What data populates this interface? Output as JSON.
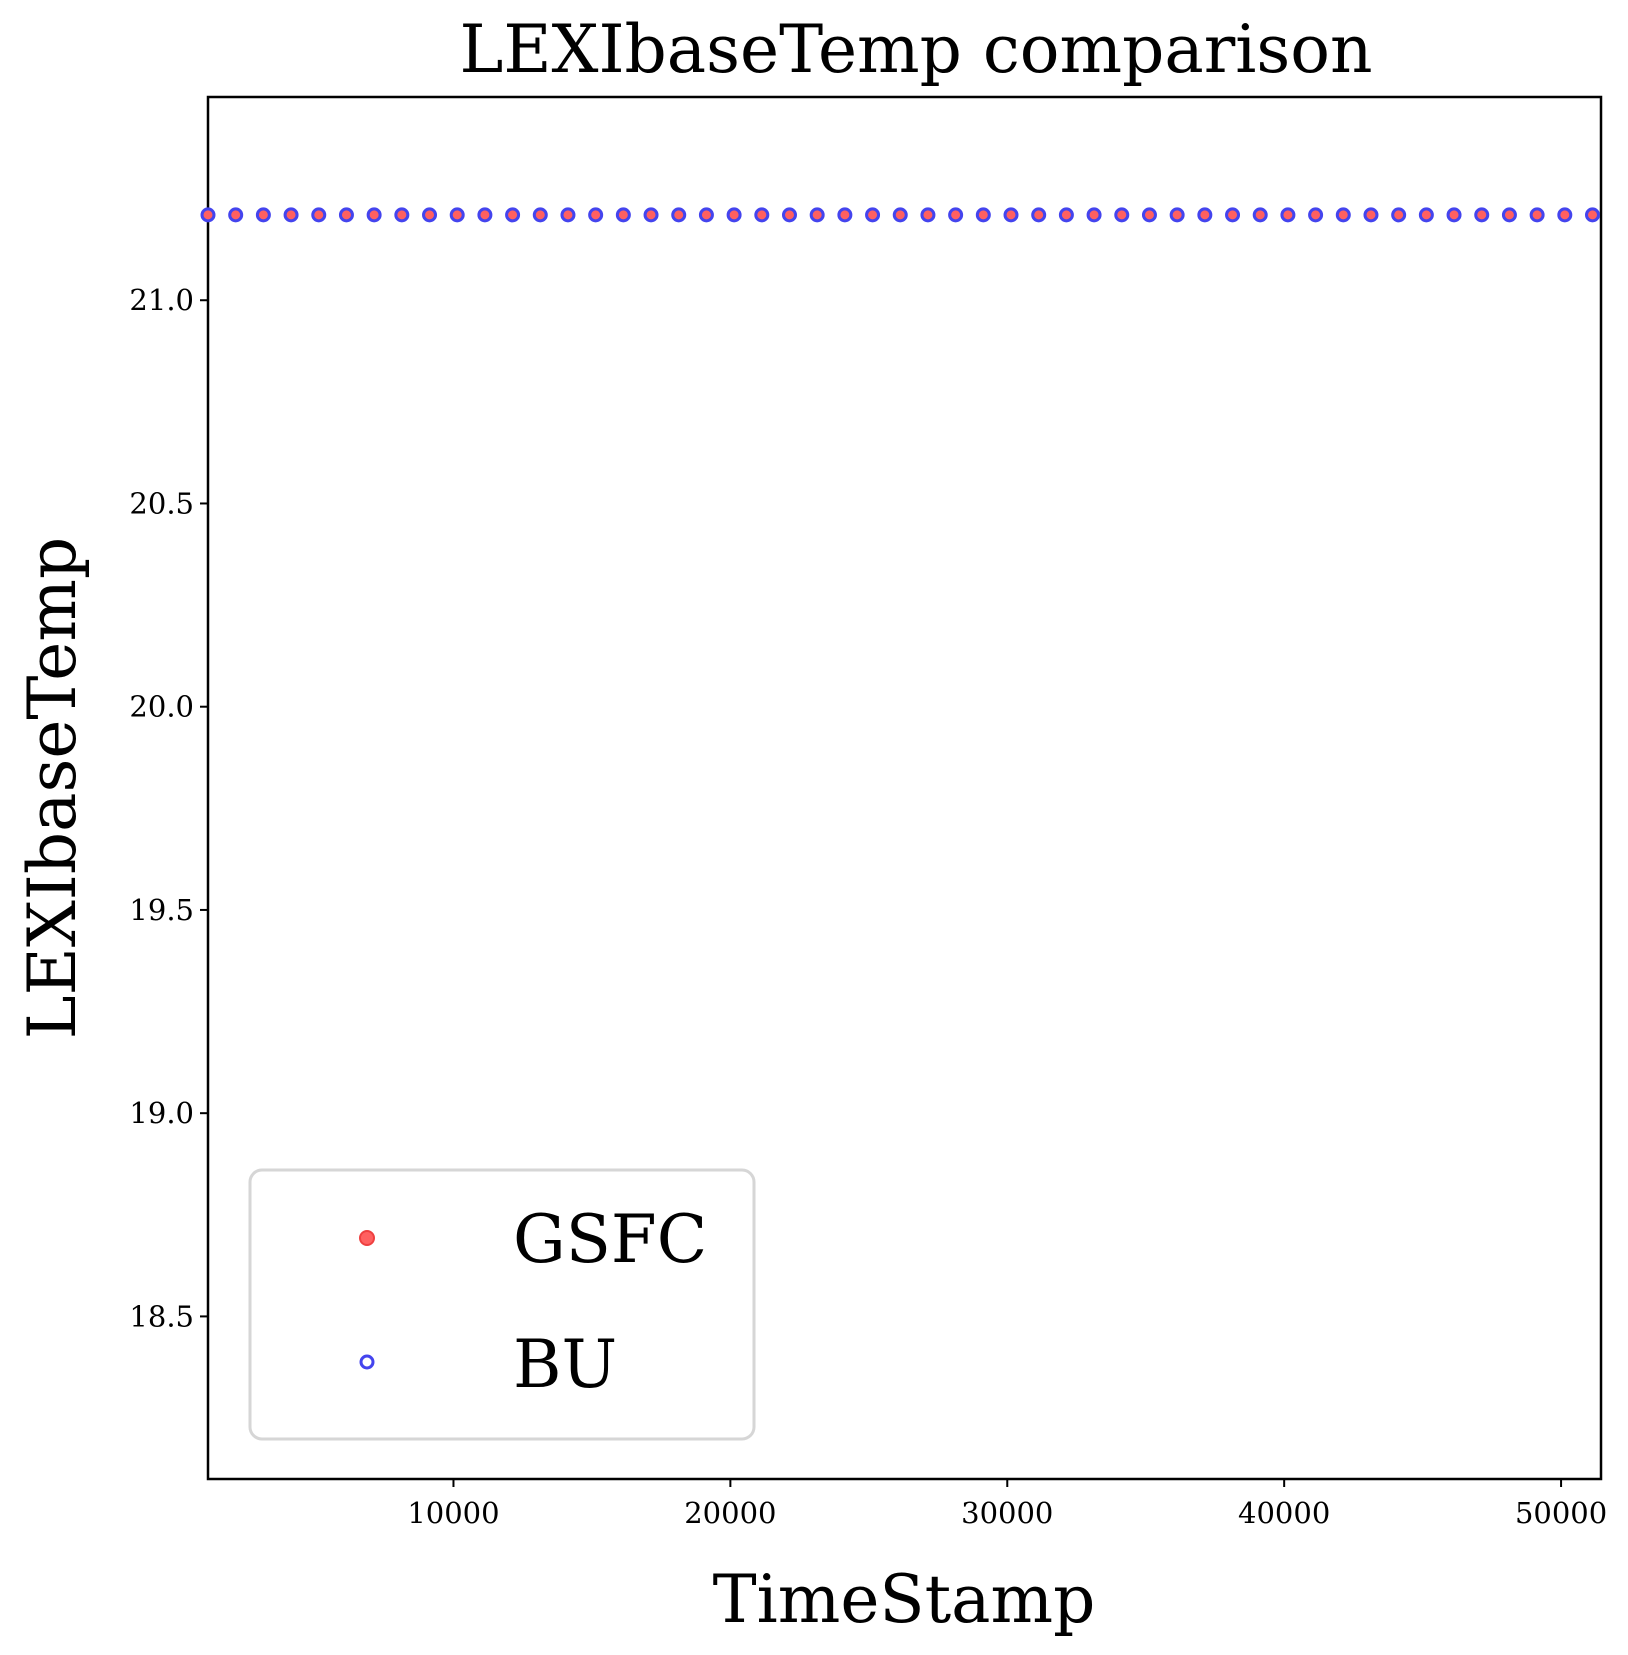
{
  "chart_data": {
    "type": "scatter",
    "title": "LEXIbaseTemp comparison",
    "xlabel": "TimeStamp",
    "ylabel": "LEXIbaseTemp",
    "xlim": [
      1135,
      51442
    ],
    "ylim": [
      18.1,
      21.5
    ],
    "x_ticks": [
      10000,
      20000,
      30000,
      40000,
      50000
    ],
    "x_tick_labels": [
      "10000",
      "20000",
      "30000",
      "40000",
      "50000"
    ],
    "y_ticks": [
      18.5,
      19.0,
      19.5,
      20.0,
      20.5,
      21.0
    ],
    "y_tick_labels": [
      "18.5",
      "19.0",
      "19.5",
      "20.0",
      "20.5",
      "21.0"
    ],
    "grid": false,
    "legend_position": "lower-left",
    "series": [
      {
        "name": "GSFC",
        "color": "#ff6060",
        "marker": "filled-circle",
        "x_start": 1135,
        "x_step": 1000,
        "count": 51,
        "y": 21.21
      },
      {
        "name": "BU",
        "color": "#4444ee",
        "marker": "hollow-circle",
        "x_start": 1135,
        "x_step": 1000,
        "count": 51,
        "y": 21.21
      }
    ]
  }
}
